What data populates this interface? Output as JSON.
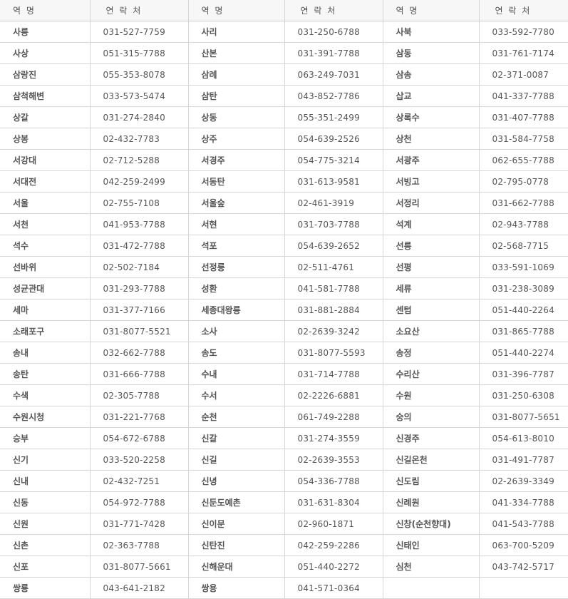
{
  "table": {
    "headers": [
      "역 명",
      "연 락 처",
      "역 명",
      "연 락 처",
      "역 명",
      "연 락 처"
    ],
    "rows": [
      [
        "사릉",
        "031-527-7759",
        "사리",
        "031-250-6788",
        "사북",
        "033-592-7780"
      ],
      [
        "사상",
        "051-315-7788",
        "산본",
        "031-391-7788",
        "삼동",
        "031-761-7174"
      ],
      [
        "삼랑진",
        "055-353-8078",
        "삼례",
        "063-249-7031",
        "삼송",
        "02-371-0087"
      ],
      [
        "삼척해변",
        "033-573-5474",
        "삼탄",
        "043-852-7786",
        "삽교",
        "041-337-7788"
      ],
      [
        "상갈",
        "031-274-2840",
        "상동",
        "055-351-2499",
        "상록수",
        "031-407-7788"
      ],
      [
        "상봉",
        "02-432-7783",
        "상주",
        "054-639-2526",
        "상천",
        "031-584-7758"
      ],
      [
        "서강대",
        "02-712-5288",
        "서경주",
        "054-775-3214",
        "서광주",
        "062-655-7788"
      ],
      [
        "서대전",
        "042-259-2499",
        "서동탄",
        "031-613-9581",
        "서빙고",
        "02-795-0778"
      ],
      [
        "서울",
        "02-755-7108",
        "서울숲",
        "02-461-3919",
        "서정리",
        "031-662-7788"
      ],
      [
        "서천",
        "041-953-7788",
        "서현",
        "031-703-7788",
        "석계",
        "02-943-7788"
      ],
      [
        "석수",
        "031-472-7788",
        "석포",
        "054-639-2652",
        "선릉",
        "02-568-7715"
      ],
      [
        "선바위",
        "02-502-7184",
        "선정릉",
        "02-511-4761",
        "선평",
        "033-591-1069"
      ],
      [
        "성균관대",
        "031-293-7788",
        "성환",
        "041-581-7788",
        "세류",
        "031-238-3089"
      ],
      [
        "세마",
        "031-377-7166",
        "세종대왕릉",
        "031-881-2884",
        "센텀",
        "051-440-2264"
      ],
      [
        "소래포구",
        "031-8077-5521",
        "소사",
        "02-2639-3242",
        "소요산",
        "031-865-7788"
      ],
      [
        "송내",
        "032-662-7788",
        "송도",
        "031-8077-5593",
        "송정",
        "051-440-2274"
      ],
      [
        "송탄",
        "031-666-7788",
        "수내",
        "031-714-7788",
        "수리산",
        "031-396-7787"
      ],
      [
        "수색",
        "02-305-7788",
        "수서",
        "02-2226-6881",
        "수원",
        "031-250-6308"
      ],
      [
        "수원시청",
        "031-221-7768",
        "순천",
        "061-749-2288",
        "숭의",
        "031-8077-5651"
      ],
      [
        "승부",
        "054-672-6788",
        "신갈",
        "031-274-3559",
        "신경주",
        "054-613-8010"
      ],
      [
        "신기",
        "033-520-2258",
        "신길",
        "02-2639-3553",
        "신길온천",
        "031-491-7787"
      ],
      [
        "신내",
        "02-432-7251",
        "신녕",
        "054-336-7788",
        "신도림",
        "02-2639-3349"
      ],
      [
        "신동",
        "054-972-7788",
        "신둔도예촌",
        "031-631-8304",
        "신례원",
        "041-334-7788"
      ],
      [
        "신원",
        "031-771-7428",
        "신이문",
        "02-960-1871",
        "신창(순천향대)",
        "041-543-7788"
      ],
      [
        "신촌",
        "02-363-7788",
        "신탄진",
        "042-259-2286",
        "신태인",
        "063-700-5209"
      ],
      [
        "신포",
        "031-8077-5661",
        "신해운대",
        "051-440-2272",
        "심천",
        "043-742-5717"
      ],
      [
        "쌍룡",
        "043-641-2182",
        "쌍용",
        "041-571-0364",
        "",
        ""
      ]
    ]
  }
}
